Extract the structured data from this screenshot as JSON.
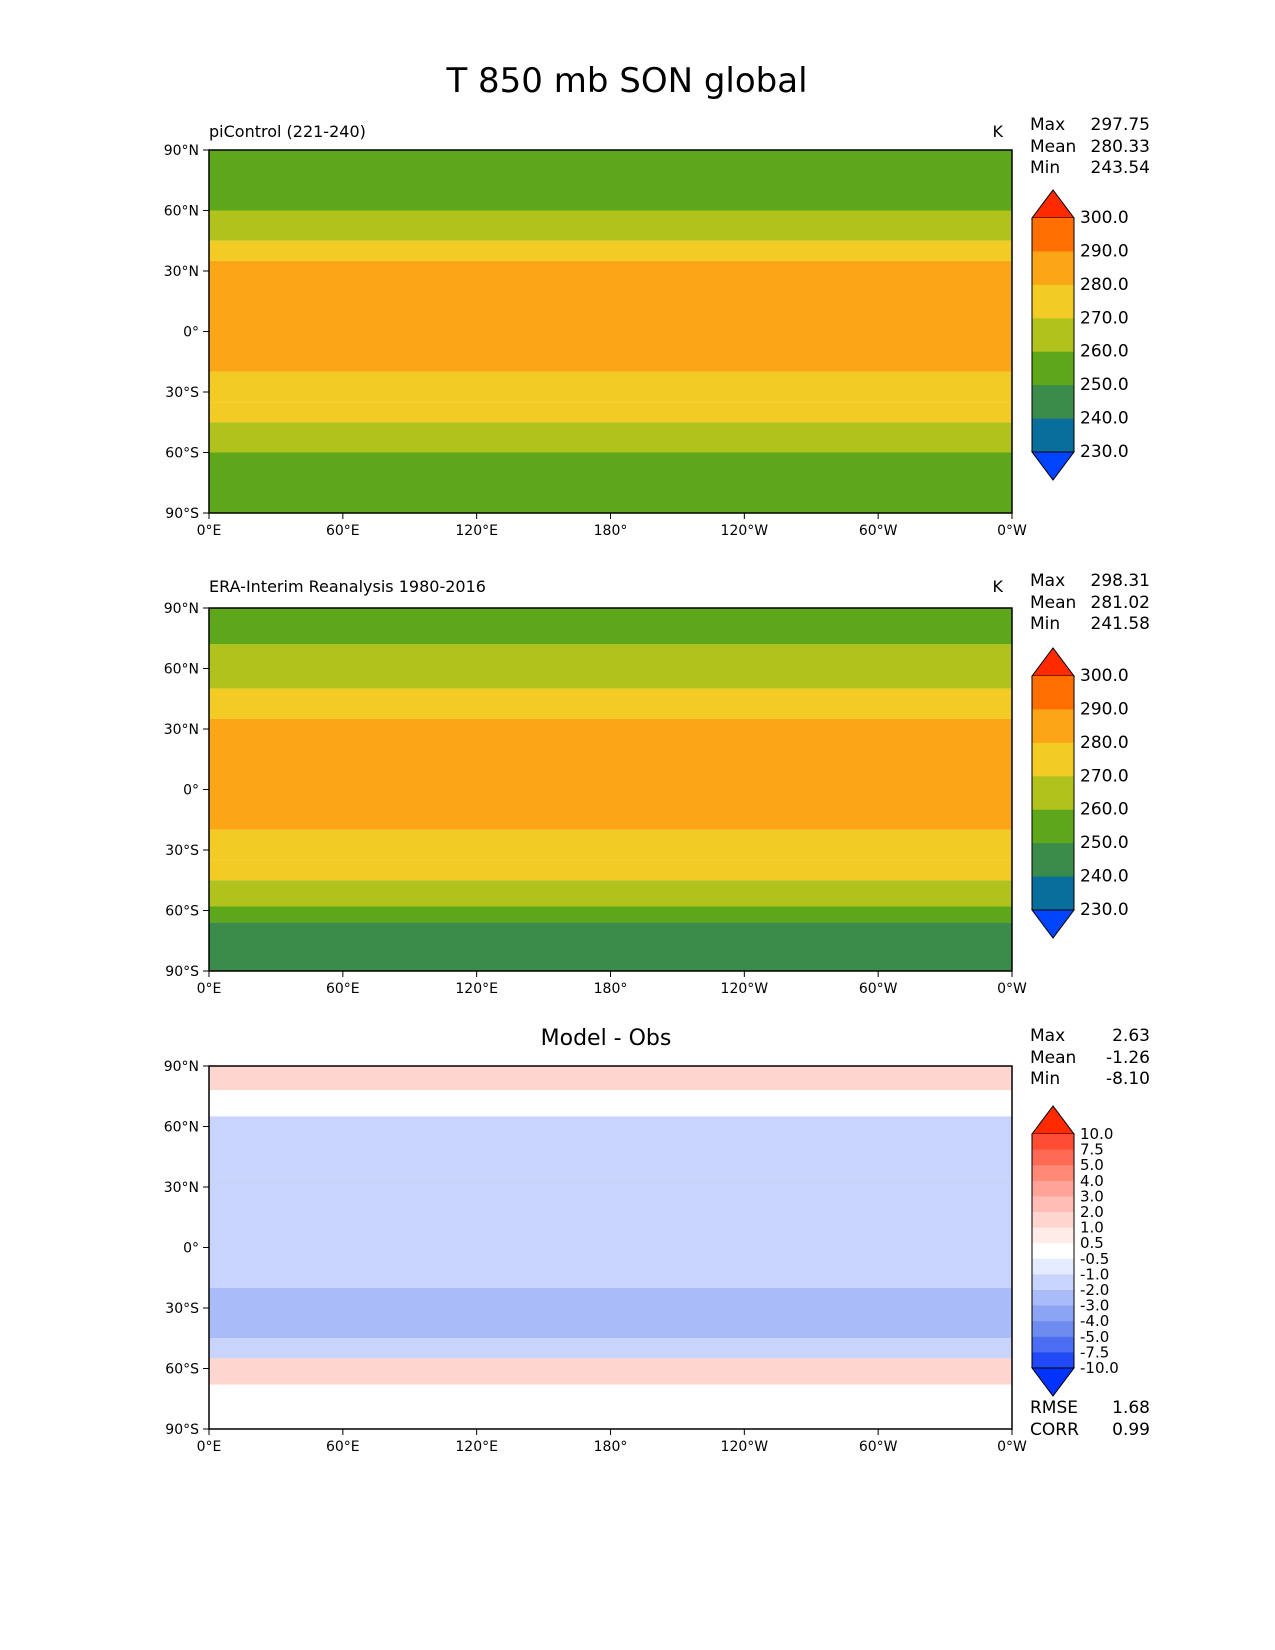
{
  "title": "T 850 mb SON global",
  "chart_data": [
    {
      "type": "heatmap",
      "subtitle": "piControl (221-240)",
      "units": "K",
      "stats": {
        "max_label": "Max",
        "max": "297.75",
        "mean_label": "Mean",
        "mean": "280.33",
        "min_label": "Min",
        "min": "243.54"
      },
      "x_ticks": [
        "0°E",
        "60°E",
        "120°E",
        "180°",
        "120°W",
        "60°W",
        "0°W"
      ],
      "y_ticks": [
        "90°N",
        "60°N",
        "30°N",
        "0°",
        "30°S",
        "60°S",
        "90°S"
      ],
      "colorbar": {
        "levels": [
          "300.0",
          "290.0",
          "280.0",
          "270.0",
          "260.0",
          "250.0",
          "240.0",
          "230.0"
        ],
        "colors": [
          "#ff2a00",
          "#ff6e00",
          "#fca516",
          "#f2cc25",
          "#b2c21d",
          "#5ea61a",
          "#3b8c4b",
          "#0a6e9c",
          "#0044ff"
        ]
      },
      "zonal_bands": [
        {
          "lat": [
            60,
            90
          ],
          "value": 252
        },
        {
          "lat": [
            45,
            60
          ],
          "value": 265
        },
        {
          "lat": [
            35,
            45
          ],
          "value": 275
        },
        {
          "lat": [
            -20,
            35
          ],
          "value": 283
        },
        {
          "lat": [
            -35,
            -20
          ],
          "value": 278
        },
        {
          "lat": [
            -45,
            -35
          ],
          "value": 273
        },
        {
          "lat": [
            -60,
            -45
          ],
          "value": 266
        },
        {
          "lat": [
            -90,
            -60
          ],
          "value": 255
        }
      ]
    },
    {
      "type": "heatmap",
      "subtitle": "ERA-Interim Reanalysis 1980-2016",
      "units": "K",
      "stats": {
        "max_label": "Max",
        "max": "298.31",
        "mean_label": "Mean",
        "mean": "281.02",
        "min_label": "Min",
        "min": "241.58"
      },
      "x_ticks": [
        "0°E",
        "60°E",
        "120°E",
        "180°",
        "120°W",
        "60°W",
        "0°W"
      ],
      "y_ticks": [
        "90°N",
        "60°N",
        "30°N",
        "0°",
        "30°S",
        "60°S",
        "90°S"
      ],
      "colorbar": {
        "levels": [
          "300.0",
          "290.0",
          "280.0",
          "270.0",
          "260.0",
          "250.0",
          "240.0",
          "230.0"
        ],
        "colors": [
          "#ff2a00",
          "#ff6e00",
          "#fca516",
          "#f2cc25",
          "#b2c21d",
          "#5ea61a",
          "#3b8c4b",
          "#0a6e9c",
          "#0044ff"
        ]
      },
      "zonal_bands": [
        {
          "lat": [
            72,
            90
          ],
          "value": 255
        },
        {
          "lat": [
            50,
            72
          ],
          "value": 264
        },
        {
          "lat": [
            35,
            50
          ],
          "value": 275
        },
        {
          "lat": [
            -20,
            35
          ],
          "value": 284
        },
        {
          "lat": [
            -35,
            -20
          ],
          "value": 278
        },
        {
          "lat": [
            -45,
            -35
          ],
          "value": 273
        },
        {
          "lat": [
            -58,
            -45
          ],
          "value": 266
        },
        {
          "lat": [
            -66,
            -58
          ],
          "value": 255
        },
        {
          "lat": [
            -90,
            -66
          ],
          "value": 245
        }
      ]
    },
    {
      "type": "heatmap",
      "title": "Model - Obs",
      "stats": {
        "max_label": "Max",
        "max": "2.63",
        "mean_label": "Mean",
        "mean": "-1.26",
        "min_label": "Min",
        "min": "-8.10"
      },
      "metrics": {
        "rmse_label": "RMSE",
        "rmse": "1.68",
        "corr_label": "CORR",
        "corr": "0.99"
      },
      "x_ticks": [
        "0°E",
        "60°E",
        "120°E",
        "180°",
        "120°W",
        "60°W",
        "0°W"
      ],
      "y_ticks": [
        "90°N",
        "60°N",
        "30°N",
        "0°",
        "30°S",
        "60°S",
        "90°S"
      ],
      "colorbar": {
        "levels": [
          "10.0",
          "7.5",
          "5.0",
          "4.0",
          "3.0",
          "2.0",
          "1.0",
          "0.5",
          "-0.5",
          "-1.0",
          "-2.0",
          "-3.0",
          "-4.0",
          "-5.0",
          "-7.5",
          "-10.0"
        ],
        "colors": [
          "#ff2a00",
          "#ff4d33",
          "#ff6a55",
          "#ff8877",
          "#ffa297",
          "#ffbdb5",
          "#ffd5d0",
          "#ffebe8",
          "#ffffff",
          "#e6ecff",
          "#c8d4fb",
          "#a9bbf8",
          "#8ca4f4",
          "#6e8cf0",
          "#4a6df2",
          "#2149f7",
          "#0033ff"
        ]
      },
      "zonal_bands": [
        {
          "lat": [
            78,
            90
          ],
          "value": 1.5
        },
        {
          "lat": [
            65,
            78
          ],
          "value": 0
        },
        {
          "lat": [
            35,
            65
          ],
          "value": -1.5
        },
        {
          "lat": [
            -20,
            35
          ],
          "value": -1.5
        },
        {
          "lat": [
            -45,
            -20
          ],
          "value": -2.5
        },
        {
          "lat": [
            -55,
            -45
          ],
          "value": -1.5
        },
        {
          "lat": [
            -68,
            -55
          ],
          "value": 1.5
        },
        {
          "lat": [
            -90,
            -68
          ],
          "value": 0
        }
      ]
    }
  ]
}
